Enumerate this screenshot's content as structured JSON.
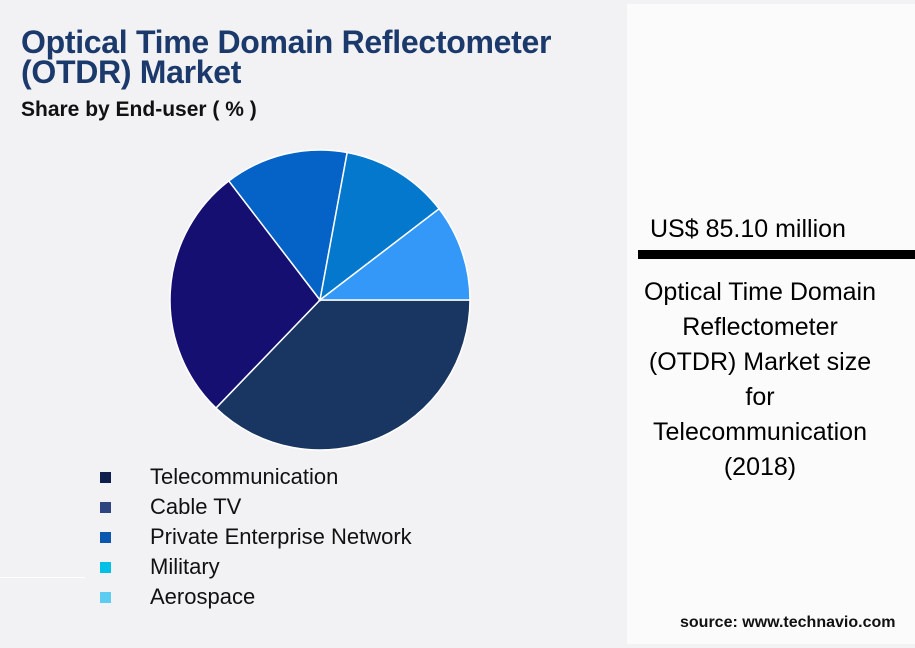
{
  "header": {
    "title": "Optical Time Domain Reflectometer (OTDR) Market",
    "subtitle": "Share by End-user ( % )"
  },
  "legend": {
    "items": [
      {
        "label": "Telecommunication",
        "color": "#0d1f4a"
      },
      {
        "label": "Cable TV",
        "color": "#2e4680"
      },
      {
        "label": "Private Enterprise Network",
        "color": "#0b57b0"
      },
      {
        "label": "Military",
        "color": "#00c0e6"
      },
      {
        "label": "Aerospace",
        "color": "#5ccdf0"
      }
    ]
  },
  "side_panel": {
    "metric": "US$ 85.10 million",
    "description": "Optical Time Domain Reflectometer (OTDR) Market size for Telecommunication (2018)"
  },
  "footer": {
    "source": "source: www.technavio.com"
  },
  "chart_data": {
    "type": "pie",
    "title": "Optical Time Domain Reflectometer (OTDR) Market",
    "subtitle": "Share by End-user ( % )",
    "categories": [
      "Telecommunication",
      "Cable TV",
      "Private Enterprise Network",
      "Military",
      "Aerospace"
    ],
    "values": [
      37.2,
      27.4,
      13.3,
      11.7,
      10.4
    ],
    "slice_colors": [
      "#183661",
      "#150f72",
      "#0563c8",
      "#0478cc",
      "#3498f8"
    ],
    "start_angle_deg": 0,
    "direction": "clockwise",
    "legend_position": "bottom-left"
  }
}
